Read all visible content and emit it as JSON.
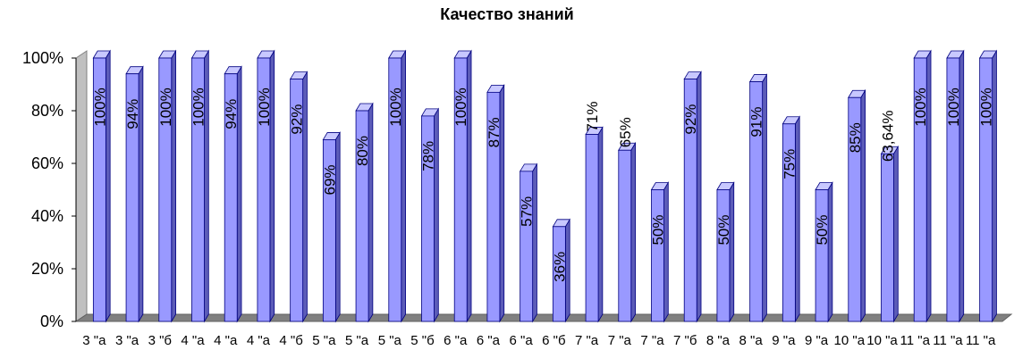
{
  "chart_data": {
    "type": "bar",
    "title": "Качество знаний",
    "xlabel": "",
    "ylabel": "",
    "ylim": [
      0,
      100
    ],
    "yticks": [
      "0%",
      "20%",
      "40%",
      "60%",
      "80%",
      "100%"
    ],
    "categories": [
      "3 \"а",
      "3 \"а",
      "3 \"б",
      "4 \"а",
      "4 \"а",
      "4 \"а",
      "4 \"б",
      "5 \"а",
      "5 \"а",
      "5 \"а",
      "5 \"б",
      "6 \"а",
      "6 \"а",
      "6 \"а",
      "6 \"б",
      "7 \"а",
      "7 \"а",
      "7 \"а",
      "7 \"б",
      "8 \"а",
      "8 \"а",
      "9 \"а",
      "9 \"а",
      "10 \"а",
      "10 \"а",
      "11 \"а",
      "11 \"а",
      "11 \"а"
    ],
    "values": [
      100,
      94,
      100,
      100,
      94,
      100,
      92,
      69,
      80,
      100,
      78,
      100,
      87,
      57,
      36,
      71,
      65,
      50,
      92,
      50,
      91,
      75,
      50,
      85,
      63.64,
      100,
      100,
      100
    ],
    "labels": [
      "100%",
      "94%",
      "100%",
      "100%",
      "94%",
      "100%",
      "92%",
      "69%",
      "80%",
      "100%",
      "78%",
      "100%",
      "87%",
      "57%",
      "36%",
      "71%",
      "65%",
      "50%",
      "92%",
      "50%",
      "91%",
      "75%",
      "50%",
      "85%",
      "63,64%",
      "100%",
      "100%",
      "100%"
    ],
    "grid": false,
    "legend": "none",
    "colors": {
      "bar_front": "#9999ff",
      "bar_side": "#5c5cb8",
      "bar_top": "#c8c8ff",
      "bar_edge": "#000080",
      "wall": "#c0c0c0",
      "floor": "#808080"
    }
  }
}
